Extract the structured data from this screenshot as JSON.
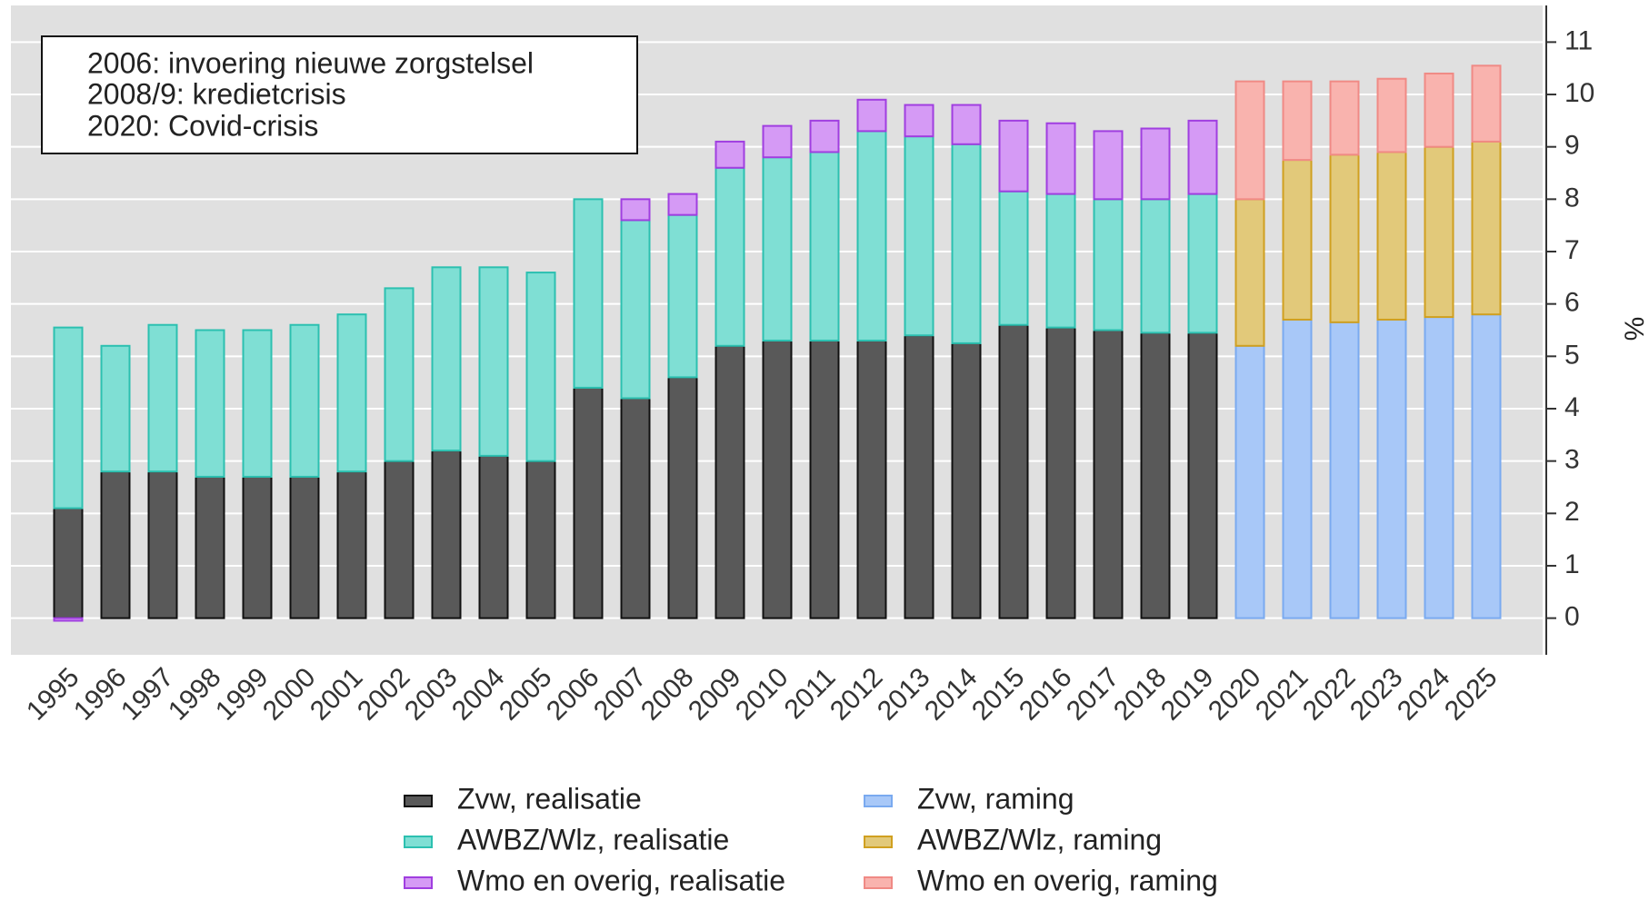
{
  "chart_data": {
    "type": "stacked_bar",
    "annotations": [
      "2006: invoering nieuwe zorgstelsel",
      "2008/9: kredietcrisis",
      "2020: Covid-crisis"
    ],
    "ylabel": "%",
    "categories": [
      "1995",
      "1996",
      "1997",
      "1998",
      "1999",
      "2000",
      "2001",
      "2002",
      "2003",
      "2004",
      "2005",
      "2006",
      "2007",
      "2008",
      "2009",
      "2010",
      "2011",
      "2012",
      "2013",
      "2014",
      "2015",
      "2016",
      "2017",
      "2018",
      "2019",
      "2020",
      "2021",
      "2022",
      "2023",
      "2024",
      "2025"
    ],
    "series": [
      {
        "name": "Zvw, realisatie",
        "color": "#595959",
        "edgecolor": "#111111",
        "values": [
          2.1,
          2.8,
          2.8,
          2.7,
          2.7,
          2.7,
          2.8,
          3.0,
          3.2,
          3.1,
          3.0,
          4.4,
          4.2,
          4.6,
          5.2,
          5.3,
          5.3,
          5.3,
          5.4,
          5.25,
          5.6,
          5.55,
          5.5,
          5.45,
          5.45,
          null,
          null,
          null,
          null,
          null,
          null
        ]
      },
      {
        "name": "AWBZ/Wlz, realisatie",
        "color": "#7fdfd4",
        "edgecolor": "#2cc0b0",
        "values": [
          3.45,
          2.4,
          2.8,
          2.8,
          2.8,
          2.9,
          3.0,
          3.3,
          3.5,
          3.6,
          3.6,
          3.6,
          3.4,
          3.1,
          3.4,
          3.5,
          3.6,
          4.0,
          3.8,
          3.8,
          2.55,
          2.55,
          2.5,
          2.55,
          2.65,
          null,
          null,
          null,
          null,
          null,
          null
        ]
      },
      {
        "name": "Wmo en overig, realisatie",
        "color": "#d59af5",
        "edgecolor": "#a03ee0",
        "values": [
          -0.05,
          0,
          0,
          0,
          0,
          0,
          0,
          0,
          0,
          0,
          0,
          0,
          0.4,
          0.4,
          0.5,
          0.6,
          0.6,
          0.6,
          0.6,
          0.75,
          1.35,
          1.35,
          1.3,
          1.35,
          1.4,
          null,
          null,
          null,
          null,
          null,
          null
        ]
      },
      {
        "name": "Zvw, raming",
        "color": "#a8c8f8",
        "edgecolor": "#7aaaf0",
        "values": [
          null,
          null,
          null,
          null,
          null,
          null,
          null,
          null,
          null,
          null,
          null,
          null,
          null,
          null,
          null,
          null,
          null,
          null,
          null,
          null,
          null,
          null,
          null,
          null,
          null,
          5.2,
          5.7,
          5.65,
          5.7,
          5.75,
          5.8
        ]
      },
      {
        "name": "AWBZ/Wlz, raming",
        "color": "#e2c97a",
        "edgecolor": "#d0a020",
        "values": [
          null,
          null,
          null,
          null,
          null,
          null,
          null,
          null,
          null,
          null,
          null,
          null,
          null,
          null,
          null,
          null,
          null,
          null,
          null,
          null,
          null,
          null,
          null,
          null,
          null,
          2.8,
          3.05,
          3.2,
          3.2,
          3.25,
          3.3
        ]
      },
      {
        "name": "Wmo en overig, raming",
        "color": "#f9b3ae",
        "edgecolor": "#f08a85",
        "values": [
          null,
          null,
          null,
          null,
          null,
          null,
          null,
          null,
          null,
          null,
          null,
          null,
          null,
          null,
          null,
          null,
          null,
          null,
          null,
          null,
          null,
          null,
          null,
          null,
          null,
          2.25,
          1.5,
          1.4,
          1.4,
          1.4,
          1.45
        ]
      }
    ],
    "ylim": [
      -0.7,
      11.7
    ],
    "yticks": [
      0,
      1,
      2,
      3,
      4,
      5,
      6,
      7,
      8,
      9,
      10,
      11
    ],
    "grid": true,
    "axis_side": "right",
    "legend": "bottom"
  }
}
